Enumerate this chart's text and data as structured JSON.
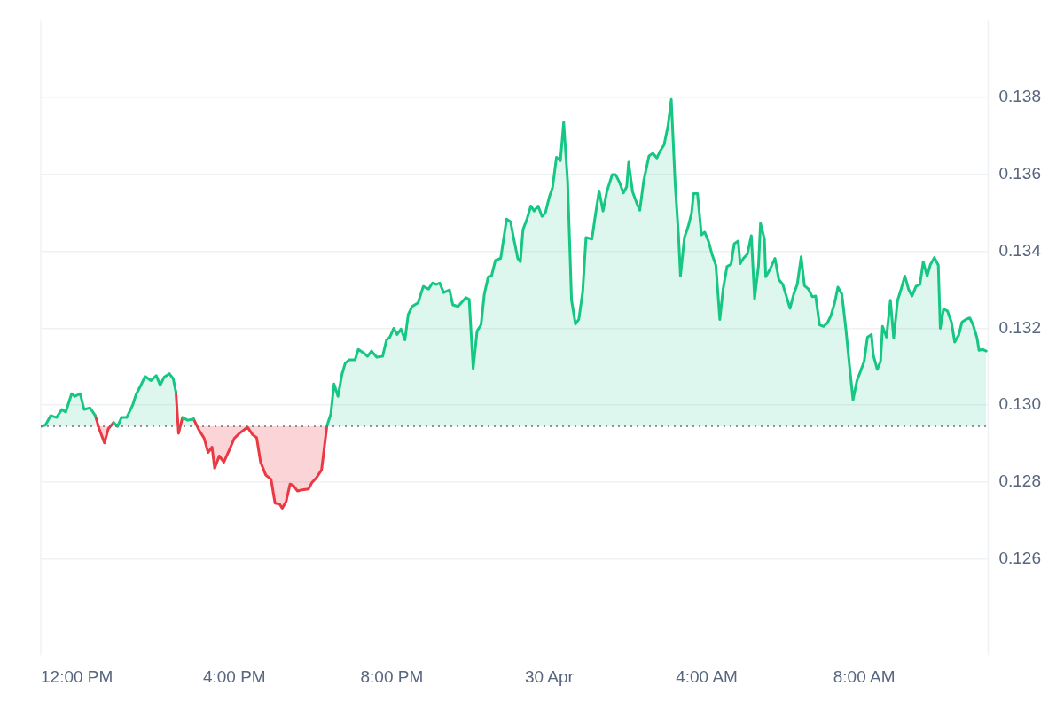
{
  "chart_data": {
    "type": "area",
    "xlim": [
      "--04-29T11:05",
      "--04-30T11:09"
    ],
    "xticks": [
      {
        "value": "--04-29T12:00",
        "label": "12:00 PM"
      },
      {
        "value": "--04-29T16:00",
        "label": "4:00 PM"
      },
      {
        "value": "--04-29T20:00",
        "label": "8:00 PM"
      },
      {
        "value": "--04-30T00:00",
        "label": "30 Apr"
      },
      {
        "value": "--04-30T04:00",
        "label": "4:00 AM"
      },
      {
        "value": "--04-30T08:00",
        "label": "8:00 AM"
      }
    ],
    "ylim": [
      0.1235,
      0.14
    ],
    "yticks": [
      {
        "value": 0.126,
        "label": "0.126"
      },
      {
        "value": 0.128,
        "label": "0.128"
      },
      {
        "value": 0.13,
        "label": "0.130"
      },
      {
        "value": 0.132,
        "label": "0.132"
      },
      {
        "value": 0.134,
        "label": "0.134"
      },
      {
        "value": 0.136,
        "label": "0.136"
      },
      {
        "value": 0.138,
        "label": "0.138"
      }
    ],
    "grid": "y",
    "legend": false,
    "marker": "none",
    "line_style": "solid",
    "ref_lines": [
      {
        "axis": "y",
        "value": 0.12945,
        "color": "#6b7280",
        "line_style": "dotted"
      }
    ],
    "series": [
      {
        "color": "#16c784",
        "x": [
          "--04-29T11:05",
          "--04-29T11:12",
          "--04-29T11:20",
          "--04-29T11:29",
          "--04-29T11:37",
          "--04-29T11:43",
          "--04-29T11:52",
          "--04-29T11:57",
          "--04-29T12:05",
          "--04-29T12:11",
          "--04-29T12:20",
          "--04-29T12:28",
          "--04-29T12:34",
          "--04-29T12:42",
          "--04-29T12:48",
          "--04-29T12:56",
          "--04-29T13:02",
          "--04-29T13:08",
          "--04-29T13:16",
          "--04-29T13:25",
          "--04-29T13:30",
          "--04-29T13:37",
          "--04-29T13:44",
          "--04-29T13:53",
          "--04-29T14:01",
          "--04-29T14:07",
          "--04-29T14:13",
          "--04-29T14:21",
          "--04-29T14:27",
          "--04-29T14:31",
          "--04-29T14:35",
          "--04-29T14:41",
          "--04-29T14:49",
          "--04-29T14:58",
          "--04-29T15:06",
          "--04-29T15:14",
          "--04-29T15:20",
          "--04-29T15:26",
          "--04-29T15:30",
          "--04-29T15:37",
          "--04-29T15:44",
          "--04-29T15:52",
          "--04-29T16:00",
          "--04-29T16:08",
          "--04-29T16:20",
          "--04-29T16:28",
          "--04-29T16:34",
          "--04-29T16:40",
          "--04-29T16:48",
          "--04-29T16:56",
          "--04-29T17:02",
          "--04-29T17:09",
          "--04-29T17:13",
          "--04-29T17:19",
          "--04-29T17:25",
          "--04-29T17:30",
          "--04-29T17:36",
          "--04-29T17:44",
          "--04-29T17:53",
          "--04-29T17:58",
          "--04-29T18:05",
          "--04-29T18:13",
          "--04-29T18:21",
          "--04-29T18:27",
          "--04-29T18:32",
          "--04-29T18:38",
          "--04-29T18:44",
          "--04-29T18:49",
          "--04-29T18:55",
          "--04-29T19:04",
          "--04-29T19:09",
          "--04-29T19:17",
          "--04-29T19:23",
          "--04-29T19:29",
          "--04-29T19:37",
          "--04-29T19:46",
          "--04-29T19:52",
          "--04-29T19:57",
          "--04-29T20:03",
          "--04-29T20:08",
          "--04-29T20:14",
          "--04-29T20:20",
          "--04-29T20:25",
          "--04-29T20:31",
          "--04-29T20:40",
          "--04-29T20:48",
          "--04-29T20:56",
          "--04-29T21:02",
          "--04-29T21:08",
          "--04-29T21:13",
          "--04-29T21:19",
          "--04-29T21:28",
          "--04-29T21:33",
          "--04-29T21:41",
          "--04-29T21:53",
          "--04-29T21:58",
          "--04-29T22:04",
          "--04-29T22:10",
          "--04-29T22:16",
          "--04-29T22:21",
          "--04-29T22:27",
          "--04-29T22:32",
          "--04-29T22:38",
          "--04-29T22:46",
          "--04-29T22:55",
          "--04-29T23:01",
          "--04-29T23:06",
          "--04-29T23:12",
          "--04-29T23:16",
          "--04-29T23:20",
          "--04-29T23:26",
          "--04-29T23:32",
          "--04-29T23:37",
          "--04-29T23:43",
          "--04-29T23:49",
          "--04-29T23:54",
          "--04-30T00:00",
          "--04-30T00:05",
          "--04-30T00:11",
          "--04-30T00:17",
          "--04-30T00:22",
          "--04-30T00:28",
          "--04-30T00:34",
          "--04-30T00:40",
          "--04-30T00:45",
          "--04-30T00:51",
          "--04-30T00:56",
          "--04-30T01:05",
          "--04-30T01:10",
          "--04-30T01:16",
          "--04-30T01:22",
          "--04-30T01:28",
          "--04-30T01:36",
          "--04-30T01:41",
          "--04-30T01:47",
          "--04-30T01:53",
          "--04-30T01:58",
          "--04-30T02:01",
          "--04-30T02:07",
          "--04-30T02:13",
          "--04-30T02:18",
          "--04-30T02:24",
          "--04-30T02:32",
          "--04-30T02:38",
          "--04-30T02:44",
          "--04-30T02:49",
          "--04-30T02:55",
          "--04-30T03:01",
          "--04-30T03:06",
          "--04-30T03:12",
          "--04-30T03:17",
          "--04-30T03:20",
          "--04-30T03:26",
          "--04-30T03:32",
          "--04-30T03:37",
          "--04-30T03:40",
          "--04-30T03:46",
          "--04-30T03:52",
          "--04-30T03:57",
          "--04-30T04:03",
          "--04-30T04:08",
          "--04-30T04:14",
          "--04-30T04:20",
          "--04-30T04:25",
          "--04-30T04:31",
          "--04-30T04:37",
          "--04-30T04:42",
          "--04-30T04:48",
          "--04-30T04:51",
          "--04-30T04:56",
          "--04-30T05:02",
          "--04-30T05:08",
          "--04-30T05:13",
          "--04-30T05:19",
          "--04-30T05:22",
          "--04-30T05:28",
          "--04-30T05:30",
          "--04-30T05:36",
          "--04-30T05:44",
          "--04-30T05:50",
          "--04-30T05:56",
          "--04-30T06:01",
          "--04-30T06:07",
          "--04-30T06:13",
          "--04-30T06:18",
          "--04-30T06:24",
          "--04-30T06:29",
          "--04-30T06:35",
          "--04-30T06:41",
          "--04-30T06:46",
          "--04-30T06:52",
          "--04-30T06:58",
          "--04-30T07:04",
          "--04-30T07:09",
          "--04-30T07:15",
          "--04-30T07:20",
          "--04-30T07:26",
          "--04-30T07:32",
          "--04-30T07:37",
          "--04-30T07:43",
          "--04-30T07:49",
          "--04-30T07:54",
          "--04-30T08:00",
          "--04-30T08:05",
          "--04-30T08:11",
          "--04-30T08:14",
          "--04-30T08:20",
          "--04-30T08:25",
          "--04-30T08:28",
          "--04-30T08:34",
          "--04-30T08:40",
          "--04-30T08:45",
          "--04-30T08:51",
          "--04-30T08:56",
          "--04-30T09:02",
          "--04-30T09:08",
          "--04-30T09:13",
          "--04-30T09:19",
          "--04-30T09:25",
          "--04-30T09:30",
          "--04-30T09:36",
          "--04-30T09:41",
          "--04-30T09:47",
          "--04-30T09:53",
          "--04-30T09:56",
          "--04-30T10:01",
          "--04-30T10:07",
          "--04-30T10:13",
          "--04-30T10:18",
          "--04-30T10:24",
          "--04-30T10:29",
          "--04-30T10:35",
          "--04-30T10:41",
          "--04-30T10:46",
          "--04-30T10:52",
          "--04-30T10:55",
          "--04-30T11:01",
          "--04-30T11:06"
        ],
        "values": [
          0.12945,
          0.12948,
          0.12973,
          0.12968,
          0.12989,
          0.12982,
          0.1303,
          0.13023,
          0.1303,
          0.12989,
          0.12993,
          0.12973,
          null,
          null,
          null,
          0.12955,
          0.12945,
          0.12968,
          0.12968,
          0.13,
          0.13027,
          0.1305,
          0.13075,
          0.13064,
          0.13077,
          0.13052,
          0.13073,
          0.13082,
          0.13068,
          0.13034,
          null,
          0.12968,
          0.12961,
          0.12964,
          null,
          null,
          null,
          null,
          null,
          null,
          null,
          null,
          null,
          null,
          null,
          null,
          null,
          null,
          null,
          null,
          null,
          null,
          null,
          null,
          null,
          null,
          null,
          null,
          null,
          null,
          null,
          null,
          0.12945,
          0.12977,
          0.13055,
          0.13023,
          0.1308,
          0.13109,
          0.13118,
          0.13118,
          0.13145,
          0.13136,
          0.13127,
          0.13141,
          0.13125,
          0.13127,
          0.1317,
          0.13177,
          0.132,
          0.13184,
          0.13198,
          0.1317,
          0.13236,
          0.13257,
          0.13266,
          0.13309,
          0.13302,
          0.13318,
          0.13314,
          0.13318,
          0.13293,
          0.133,
          0.13261,
          0.13257,
          0.1328,
          0.13275,
          0.13095,
          0.13193,
          0.13209,
          0.13289,
          0.13334,
          0.13336,
          0.13377,
          0.13382,
          0.13484,
          0.13477,
          0.13432,
          0.13382,
          0.13373,
          0.13457,
          0.13484,
          0.13518,
          0.13505,
          0.13518,
          0.13491,
          0.135,
          0.13541,
          0.13566,
          0.13645,
          0.13636,
          0.13736,
          0.13582,
          0.13273,
          0.13211,
          0.13223,
          0.13295,
          0.13436,
          0.13432,
          0.13491,
          0.13557,
          0.13505,
          0.13557,
          0.136,
          0.136,
          0.1358,
          0.13552,
          0.13568,
          0.13632,
          0.13555,
          0.13527,
          0.13507,
          0.13584,
          0.13648,
          0.13655,
          0.13643,
          0.13661,
          0.13677,
          0.13727,
          0.13795,
          0.13573,
          0.13443,
          0.13336,
          0.13436,
          0.13466,
          0.135,
          0.1355,
          0.1355,
          0.13443,
          0.1345,
          0.13425,
          0.13393,
          0.13364,
          0.13223,
          0.13302,
          0.13361,
          0.13366,
          0.1342,
          0.13427,
          0.13368,
          0.13382,
          0.13393,
          0.13441,
          0.13277,
          0.13364,
          0.13473,
          0.13432,
          0.13334,
          0.13352,
          0.13382,
          0.13327,
          0.13314,
          0.13286,
          0.13252,
          0.13291,
          0.13314,
          0.13386,
          0.13311,
          0.13302,
          0.13282,
          0.13284,
          0.13209,
          0.13205,
          0.13214,
          0.13232,
          0.13266,
          0.13307,
          0.13289,
          0.132,
          0.13114,
          0.13014,
          0.13064,
          0.13086,
          0.13114,
          0.13177,
          0.13184,
          0.1313,
          0.13093,
          0.13114,
          0.13205,
          0.13177,
          0.13273,
          0.13175,
          0.13273,
          0.133,
          0.13336,
          0.133,
          0.13284,
          0.13309,
          0.13314,
          0.13373,
          0.13336,
          0.13366,
          0.13384,
          0.13364,
          0.132,
          0.1325,
          0.13245,
          0.13216,
          0.13164,
          0.13182,
          0.13216,
          0.13223,
          0.13227,
          0.13209,
          0.13175,
          0.13143,
          0.13145,
          0.13141
        ]
      },
      {
        "color": "#ea3943",
        "x": [
          "--04-29T12:28",
          "--04-29T12:34",
          "--04-29T12:42",
          "--04-29T12:48",
          "--04-29T12:56",
          "--04-29T13:02",
          "--04-29T14:31",
          "--04-29T14:35",
          "--04-29T14:41",
          "--04-29T14:49",
          "--04-29T14:58",
          "--04-29T15:06",
          "--04-29T15:14",
          "--04-29T15:20",
          "--04-29T15:26",
          "--04-29T15:30",
          "--04-29T15:37",
          "--04-29T15:44",
          "--04-29T15:52",
          "--04-29T16:00",
          "--04-29T16:08",
          "--04-29T16:20",
          "--04-29T16:28",
          "--04-29T16:34",
          "--04-29T16:40",
          "--04-29T16:48",
          "--04-29T16:56",
          "--04-29T17:02",
          "--04-29T17:09",
          "--04-29T17:13",
          "--04-29T17:19",
          "--04-29T17:25",
          "--04-29T17:30",
          "--04-29T17:36",
          "--04-29T17:44",
          "--04-29T17:53",
          "--04-29T17:58",
          "--04-29T18:05",
          "--04-29T18:13",
          "--04-29T18:21"
        ],
        "values": [
          0.12973,
          0.12939,
          0.12902,
          0.12939,
          0.12955,
          null,
          0.13034,
          0.12927,
          0.12968,
          null,
          0.12964,
          0.12936,
          0.12914,
          0.12877,
          0.12891,
          0.12836,
          0.12868,
          0.12852,
          0.12882,
          0.12914,
          0.12927,
          0.12943,
          0.12923,
          0.12916,
          0.12852,
          0.12818,
          0.12807,
          0.12745,
          0.12743,
          0.12732,
          0.1275,
          0.12795,
          0.12791,
          0.12777,
          0.1278,
          0.12782,
          0.12798,
          0.12811,
          0.12832,
          0.12945
        ]
      }
    ]
  }
}
